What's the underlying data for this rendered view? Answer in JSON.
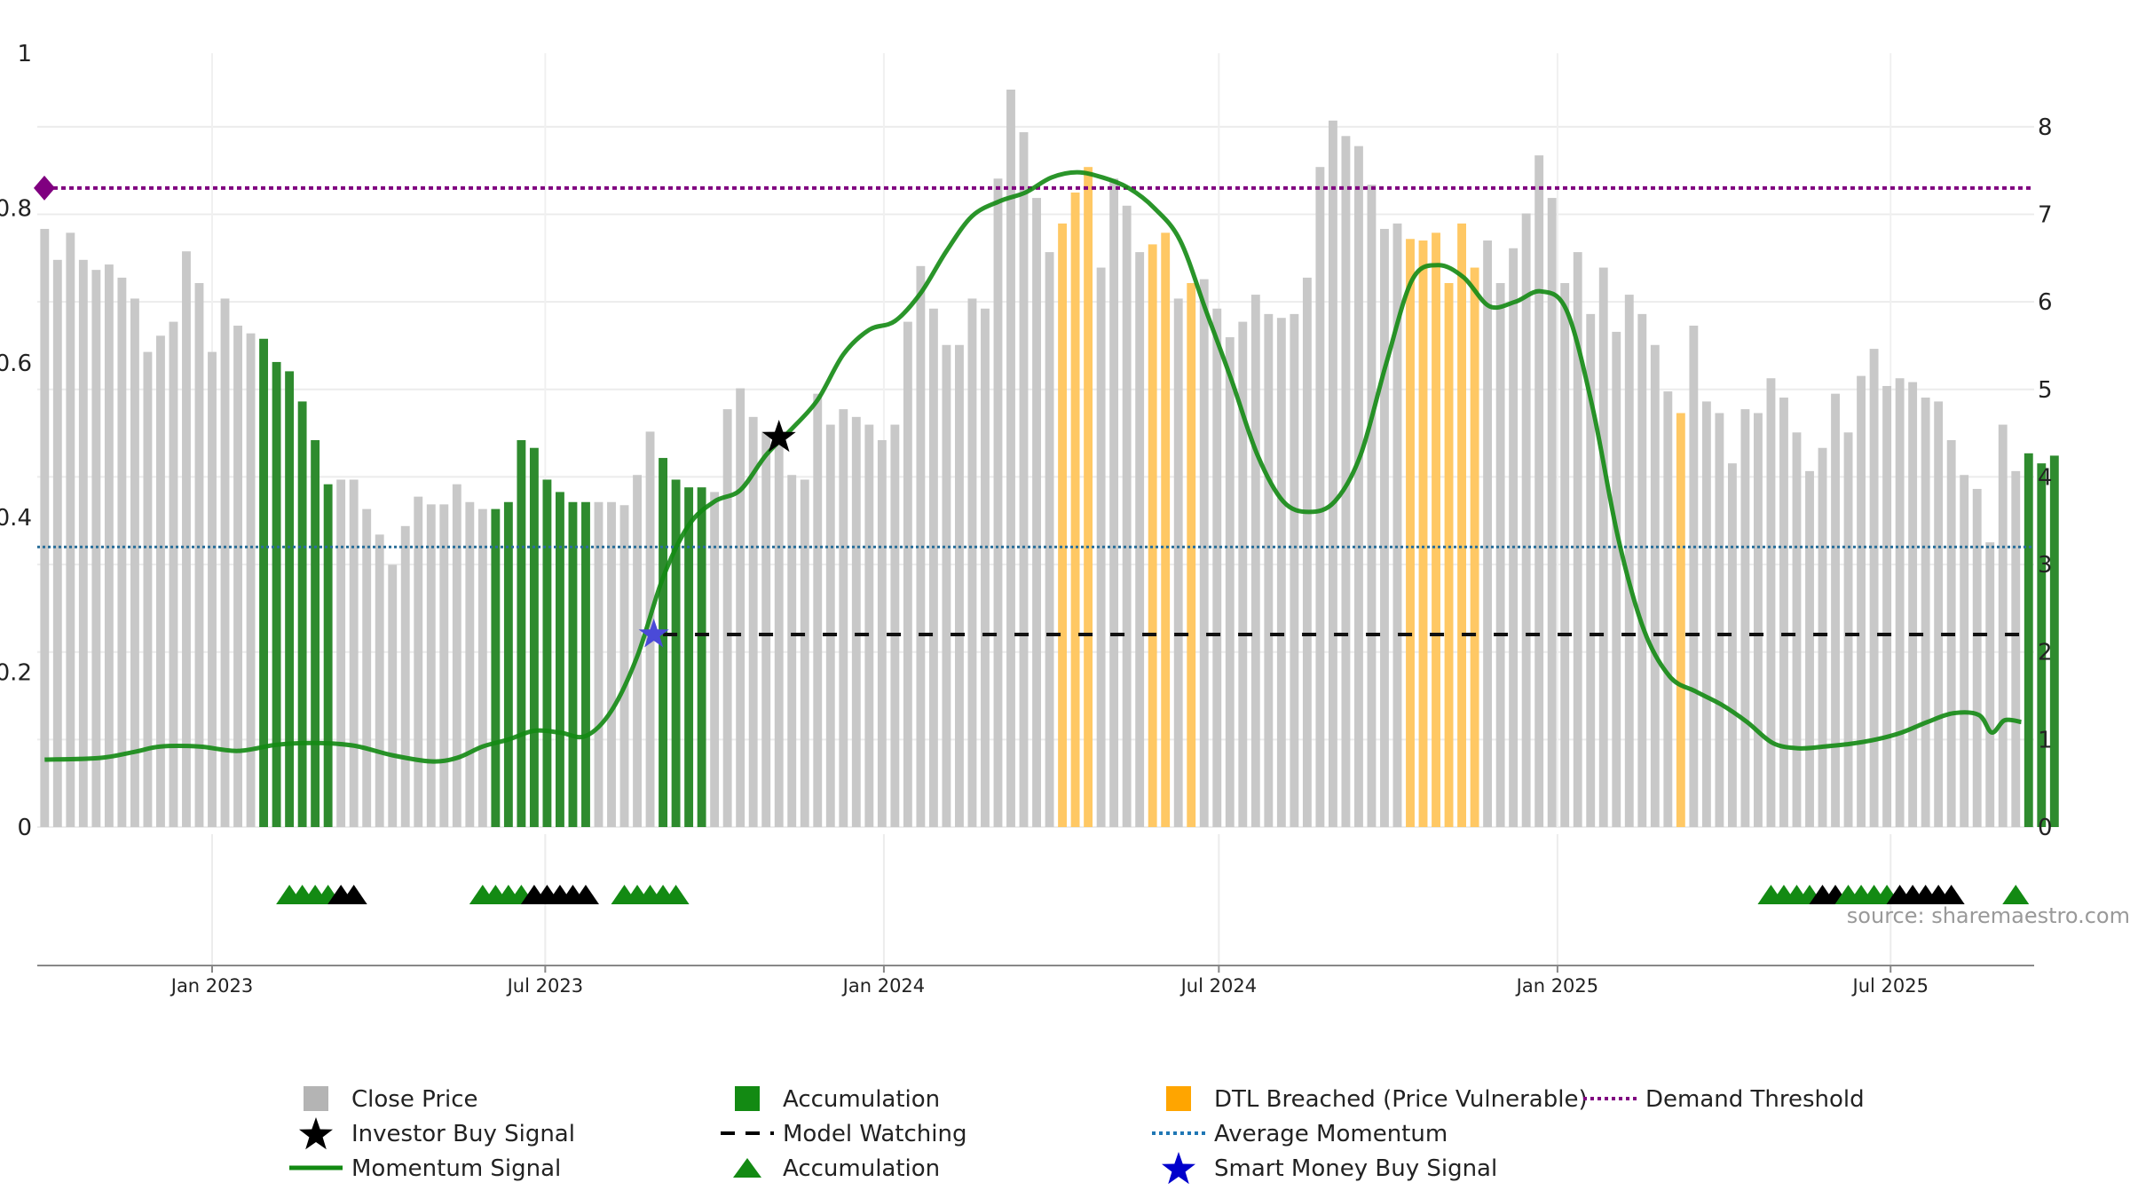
{
  "chart_data": {
    "type": "bar",
    "title": "",
    "source": "source: sharemaestro.com",
    "left_axis": {
      "range": [
        0,
        1
      ],
      "ticks": [
        "0",
        "0.2",
        "0.4",
        "0.6",
        "0.8",
        "1"
      ]
    },
    "right_axis": {
      "range": [
        0,
        8.84
      ],
      "ticks": [
        "0",
        "1",
        "2",
        "3",
        "4",
        "5",
        "6",
        "7",
        "8"
      ]
    },
    "x_axis": {
      "range": [
        "2022-09-28",
        "2025-09-17"
      ],
      "ticks": [
        {
          "date": "2023-01-01",
          "label": "Jan 2023"
        },
        {
          "date": "2023-07-01",
          "label": "Jul 2023"
        },
        {
          "date": "2024-01-01",
          "label": "Jan 2024"
        },
        {
          "date": "2024-07-01",
          "label": "Jul 2024"
        },
        {
          "date": "2025-01-01",
          "label": "Jan 2025"
        },
        {
          "date": "2025-07-01",
          "label": "Jul 2025"
        }
      ]
    },
    "bars": {
      "start": "2022-10-02",
      "step_days": 7,
      "values": [
        0.773,
        0.733,
        0.768,
        0.733,
        0.72,
        0.727,
        0.71,
        0.683,
        0.614,
        0.635,
        0.653,
        0.744,
        0.703,
        0.614,
        0.683,
        0.648,
        0.638,
        0.631,
        0.601,
        0.589,
        0.55,
        0.5,
        0.443,
        0.449,
        0.449,
        0.411,
        0.378,
        0.339,
        0.389,
        0.427,
        0.417,
        0.417,
        0.443,
        0.42,
        0.411,
        0.411,
        0.42,
        0.5,
        0.49,
        0.449,
        0.433,
        0.42,
        0.42,
        0.42,
        0.42,
        0.416,
        0.455,
        0.511,
        0.477,
        0.449,
        0.439,
        0.439,
        0.433,
        0.54,
        0.567,
        0.53,
        0.511,
        0.5,
        0.455,
        0.449,
        0.56,
        0.52,
        0.54,
        0.53,
        0.52,
        0.5,
        0.52,
        0.653,
        0.725,
        0.67,
        0.623,
        0.623,
        0.683,
        0.67,
        0.838,
        0.953,
        0.898,
        0.813,
        0.743,
        0.78,
        0.82,
        0.853,
        0.723,
        0.838,
        0.803,
        0.743,
        0.753,
        0.768,
        0.683,
        0.703,
        0.708,
        0.67,
        0.633,
        0.653,
        0.688,
        0.663,
        0.658,
        0.663,
        0.71,
        0.853,
        0.913,
        0.893,
        0.88,
        0.83,
        0.773,
        0.78,
        0.76,
        0.758,
        0.768,
        0.703,
        0.78,
        0.723,
        0.758,
        0.703,
        0.748,
        0.793,
        0.868,
        0.813,
        0.703,
        0.743,
        0.663,
        0.723,
        0.64,
        0.688,
        0.663,
        0.623,
        0.563,
        0.535,
        0.648,
        0.55,
        0.535,
        0.47,
        0.54,
        0.535,
        0.58,
        0.555,
        0.51,
        0.46,
        0.49,
        0.56,
        0.51,
        0.583,
        0.618,
        0.57,
        0.58,
        0.575,
        0.555,
        0.55,
        0.5,
        0.455,
        0.437,
        0.368,
        0.52,
        0.46,
        0.483,
        0.47,
        0.48
      ],
      "states": "gggggggggggggggggaaaaaaggggggggggggaaaaaaaagggggaaaagggggggggggggggggggggggggggdddggggddgdggggggggggggggggddddddgggggggggggggggdggggggggggggggggggggggggggaaaaaaagaaaaaaaaggggga",
      "state_colors": {
        "g": "#c8c8c8",
        "a": "#2e8b2e",
        "d": "#ffc864"
      }
    },
    "momentum": {
      "points": [
        [
          "2022-10-02",
          0.77
        ],
        [
          "2022-11-01",
          0.79
        ],
        [
          "2022-11-20",
          0.86
        ],
        [
          "2022-12-04",
          0.92
        ],
        [
          "2022-12-25",
          0.92
        ],
        [
          "2023-01-15",
          0.87
        ],
        [
          "2023-02-05",
          0.94
        ],
        [
          "2023-02-26",
          0.96
        ],
        [
          "2023-03-19",
          0.93
        ],
        [
          "2023-04-09",
          0.82
        ],
        [
          "2023-04-30",
          0.75
        ],
        [
          "2023-05-14",
          0.79
        ],
        [
          "2023-05-28",
          0.92
        ],
        [
          "2023-06-11",
          1.0
        ],
        [
          "2023-06-25",
          1.1
        ],
        [
          "2023-07-09",
          1.08
        ],
        [
          "2023-07-23",
          1.04
        ],
        [
          "2023-08-06",
          1.33
        ],
        [
          "2023-08-20",
          1.95
        ],
        [
          "2023-09-03",
          2.85
        ],
        [
          "2023-09-17",
          3.45
        ],
        [
          "2023-10-01",
          3.72
        ],
        [
          "2023-10-15",
          3.85
        ],
        [
          "2023-10-29",
          4.25
        ],
        [
          "2023-11-12",
          4.55
        ],
        [
          "2023-11-26",
          4.88
        ],
        [
          "2023-12-10",
          5.4
        ],
        [
          "2023-12-24",
          5.68
        ],
        [
          "2024-01-07",
          5.78
        ],
        [
          "2024-01-21",
          6.1
        ],
        [
          "2024-02-04",
          6.58
        ],
        [
          "2024-02-18",
          6.98
        ],
        [
          "2024-03-04",
          7.15
        ],
        [
          "2024-03-18",
          7.25
        ],
        [
          "2024-04-01",
          7.42
        ],
        [
          "2024-04-15",
          7.48
        ],
        [
          "2024-04-29",
          7.42
        ],
        [
          "2024-05-13",
          7.3
        ],
        [
          "2024-05-27",
          7.07
        ],
        [
          "2024-06-10",
          6.7
        ],
        [
          "2024-06-24",
          5.9
        ],
        [
          "2024-07-08",
          5.1
        ],
        [
          "2024-07-22",
          4.25
        ],
        [
          "2024-08-05",
          3.72
        ],
        [
          "2024-08-19",
          3.6
        ],
        [
          "2024-09-02",
          3.72
        ],
        [
          "2024-09-16",
          4.25
        ],
        [
          "2024-09-30",
          5.3
        ],
        [
          "2024-10-14",
          6.25
        ],
        [
          "2024-10-28",
          6.42
        ],
        [
          "2024-11-11",
          6.28
        ],
        [
          "2024-11-25",
          5.95
        ],
        [
          "2024-12-09",
          6.0
        ],
        [
          "2024-12-23",
          6.12
        ],
        [
          "2025-01-06",
          5.9
        ],
        [
          "2025-01-20",
          4.8
        ],
        [
          "2025-02-03",
          3.3
        ],
        [
          "2025-02-17",
          2.25
        ],
        [
          "2025-03-03",
          1.72
        ],
        [
          "2025-03-17",
          1.55
        ],
        [
          "2025-03-31",
          1.4
        ],
        [
          "2025-04-14",
          1.2
        ],
        [
          "2025-04-28",
          0.96
        ],
        [
          "2025-05-12",
          0.9
        ],
        [
          "2025-05-26",
          0.92
        ],
        [
          "2025-06-09",
          0.95
        ],
        [
          "2025-06-23",
          1.0
        ],
        [
          "2025-07-07",
          1.08
        ],
        [
          "2025-07-21",
          1.2
        ],
        [
          "2025-08-04",
          1.3
        ],
        [
          "2025-08-18",
          1.28
        ],
        [
          "2025-08-25",
          1.08
        ],
        [
          "2025-09-01",
          1.22
        ],
        [
          "2025-09-10",
          1.2
        ]
      ],
      "color": "#138a13"
    },
    "average_momentum": 3.2,
    "demand_threshold": 7.3,
    "model_watching": {
      "start": "2023-09-03",
      "end": "2025-09-17",
      "value": 2.2
    },
    "investor_buy_signal": {
      "date": "2023-11-05",
      "value": 4.45
    },
    "smart_money_buy_signal": {
      "date": "2023-08-29",
      "value": 2.2
    },
    "markers": [
      {
        "date": "2023-02-12",
        "color": "#138a13"
      },
      {
        "date": "2023-02-19",
        "color": "#138a13"
      },
      {
        "date": "2023-02-26",
        "color": "#138a13"
      },
      {
        "date": "2023-03-05",
        "color": "#138a13"
      },
      {
        "date": "2023-03-12",
        "color": "#000000"
      },
      {
        "date": "2023-03-19",
        "color": "#000000"
      },
      {
        "date": "2023-05-28",
        "color": "#138a13"
      },
      {
        "date": "2023-06-04",
        "color": "#138a13"
      },
      {
        "date": "2023-06-11",
        "color": "#138a13"
      },
      {
        "date": "2023-06-18",
        "color": "#138a13"
      },
      {
        "date": "2023-06-25",
        "color": "#000000"
      },
      {
        "date": "2023-07-02",
        "color": "#000000"
      },
      {
        "date": "2023-07-09",
        "color": "#000000"
      },
      {
        "date": "2023-07-16",
        "color": "#000000"
      },
      {
        "date": "2023-07-23",
        "color": "#000000"
      },
      {
        "date": "2023-08-13",
        "color": "#138a13"
      },
      {
        "date": "2023-08-20",
        "color": "#138a13"
      },
      {
        "date": "2023-08-27",
        "color": "#138a13"
      },
      {
        "date": "2023-09-03",
        "color": "#138a13"
      },
      {
        "date": "2023-09-10",
        "color": "#138a13"
      },
      {
        "date": "2025-04-27",
        "color": "#138a13"
      },
      {
        "date": "2025-05-04",
        "color": "#138a13"
      },
      {
        "date": "2025-05-11",
        "color": "#138a13"
      },
      {
        "date": "2025-05-18",
        "color": "#138a13"
      },
      {
        "date": "2025-05-25",
        "color": "#000000"
      },
      {
        "date": "2025-06-01",
        "color": "#000000"
      },
      {
        "date": "2025-06-08",
        "color": "#138a13"
      },
      {
        "date": "2025-06-15",
        "color": "#138a13"
      },
      {
        "date": "2025-06-22",
        "color": "#138a13"
      },
      {
        "date": "2025-06-29",
        "color": "#138a13"
      },
      {
        "date": "2025-07-06",
        "color": "#000000"
      },
      {
        "date": "2025-07-13",
        "color": "#000000"
      },
      {
        "date": "2025-07-20",
        "color": "#000000"
      },
      {
        "date": "2025-07-27",
        "color": "#000000"
      },
      {
        "date": "2025-08-03",
        "color": "#000000"
      },
      {
        "date": "2025-09-07",
        "color": "#138a13"
      }
    ],
    "legend": [
      {
        "label": "Close Price",
        "symbol": "square",
        "color": "#b4b4b4"
      },
      {
        "label": "Investor Buy Signal",
        "symbol": "star",
        "color": "#000000"
      },
      {
        "label": "Momentum Signal",
        "symbol": "line",
        "color": "#138a13"
      },
      {
        "label": "Accumulation",
        "symbol": "square",
        "color": "#138a13"
      },
      {
        "label": "Model Watching",
        "symbol": "dash",
        "color": "#000000"
      },
      {
        "label": "Accumulation",
        "symbol": "triangle",
        "color": "#138a13"
      },
      {
        "label": "DTL Breached (Price Vulnerable)",
        "symbol": "square",
        "color": "#ffa500"
      },
      {
        "label": "Average Momentum",
        "symbol": "dotted",
        "color": "#1f77b4"
      },
      {
        "label": "Smart Money Buy Signal",
        "symbol": "star",
        "color": "#0000cc"
      },
      {
        "label": "Demand Threshold",
        "symbol": "dotted",
        "color": "#800080"
      }
    ]
  }
}
